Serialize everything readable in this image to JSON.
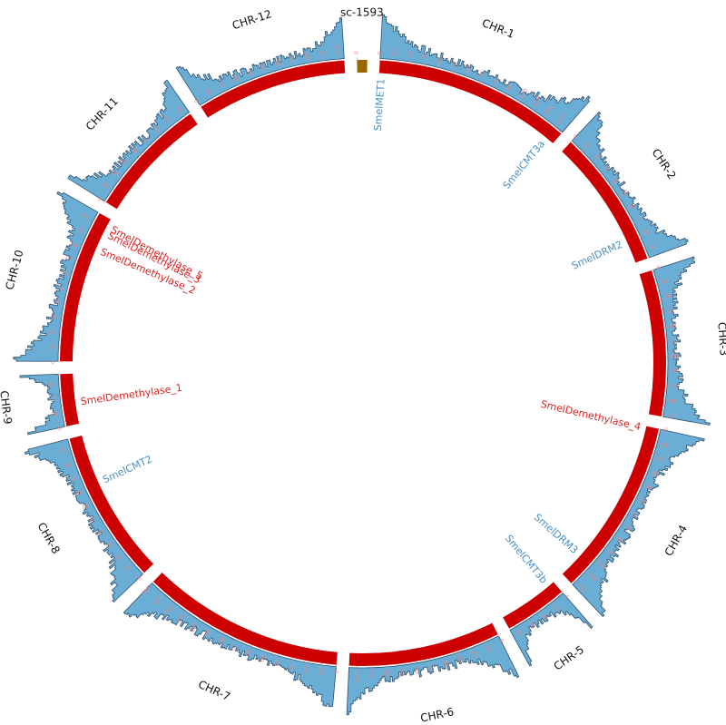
{
  "colors": {
    "ideogram": "#cc0000",
    "unplaced": "#996600",
    "histogram_fill": "#6aaed6",
    "histogram_stroke": "#2f4f6f",
    "tick": "#e08a8a",
    "gene_methyltransferase": "#4a90c4",
    "gene_demethylase": "#dd2222"
  },
  "chromosomes": [
    {
      "name": "CHR-1",
      "size": 136
    },
    {
      "name": "CHR-2",
      "size": 96
    },
    {
      "name": "CHR-3",
      "size": 101
    },
    {
      "name": "CHR-4",
      "size": 123
    },
    {
      "name": "CHR-5",
      "size": 44
    },
    {
      "name": "CHR-6",
      "size": 105
    },
    {
      "name": "CHR-7",
      "size": 140
    },
    {
      "name": "CHR-8",
      "size": 106
    },
    {
      "name": "CHR-9",
      "size": 36
    },
    {
      "name": "CHR-10",
      "size": 106
    },
    {
      "name": "CHR-11",
      "size": 84
    },
    {
      "name": "CHR-12",
      "size": 104
    },
    {
      "name": "sc-1593",
      "size": 7,
      "unplaced": true
    }
  ],
  "tick_step": 10,
  "genes": [
    {
      "name": "SmelMET1",
      "chr": "CHR-1",
      "pos": 2,
      "class": "methyltransferase"
    },
    {
      "name": "SmelCMT3a",
      "chr": "CHR-1",
      "pos": 130,
      "class": "methyltransferase"
    },
    {
      "name": "SmelDRM2",
      "chr": "CHR-2",
      "pos": 80,
      "class": "methyltransferase"
    },
    {
      "name": "SmelDemethylase_4",
      "chr": "CHR-4",
      "pos": 2,
      "class": "demethylase"
    },
    {
      "name": "SmelDRM3",
      "chr": "CHR-4",
      "pos": 105,
      "class": "methyltransferase"
    },
    {
      "name": "SmelCMT3b",
      "chr": "CHR-5",
      "pos": 5,
      "class": "methyltransferase"
    },
    {
      "name": "SmelCMT2",
      "chr": "CHR-8",
      "pos": 70,
      "class": "methyltransferase"
    },
    {
      "name": "SmelDemethylase_1",
      "chr": "CHR-9",
      "pos": 15,
      "class": "demethylase"
    },
    {
      "name": "SmelDemethylase_2",
      "chr": "CHR-10",
      "pos": 82,
      "class": "demethylase"
    },
    {
      "name": "SmelDemethylase_3",
      "chr": "CHR-10",
      "pos": 95,
      "class": "demethylase"
    },
    {
      "name": "SmelDemethylase_5",
      "chr": "CHR-10",
      "pos": 100,
      "class": "demethylase"
    }
  ]
}
